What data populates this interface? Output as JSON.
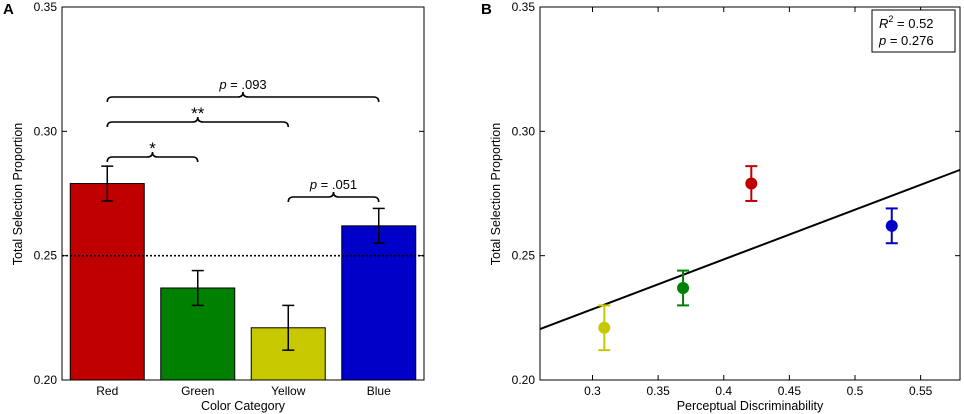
{
  "chart_data": [
    {
      "type": "bar",
      "panel": "A",
      "xlabel": "Color Category",
      "ylabel": "Total Selection Proportion",
      "ylim": [
        0.2,
        0.35
      ],
      "yticks": [
        "0.20",
        "0.25",
        "0.30",
        "0.35"
      ],
      "categories": [
        "Red",
        "Green",
        "Yellow",
        "Blue"
      ],
      "values": [
        0.279,
        0.237,
        0.221,
        0.262
      ],
      "errors": [
        0.007,
        0.007,
        0.009,
        0.007
      ],
      "colors": [
        "#c00000",
        "#008000",
        "#c8c800",
        "#0000c8"
      ],
      "reference_line": {
        "y": 0.25,
        "style": "dotted"
      },
      "annotations": [
        {
          "label": "*",
          "from": "Red",
          "to": "Green"
        },
        {
          "label": "**",
          "from": "Red",
          "to": "Yellow"
        },
        {
          "label": "p = .093",
          "from": "Red",
          "to": "Blue"
        },
        {
          "label": "p = .051",
          "from": "Yellow",
          "to": "Blue"
        }
      ]
    },
    {
      "type": "scatter",
      "panel": "B",
      "xlabel": "Perceptual Discriminability",
      "ylabel": "Total Selection Proportion",
      "xlim": [
        0.26,
        0.58
      ],
      "ylim": [
        0.2,
        0.35
      ],
      "xticks": [
        "0.3",
        "0.35",
        "0.4",
        "0.45",
        "0.5",
        "0.55"
      ],
      "yticks": [
        "0.20",
        "0.25",
        "0.30",
        "0.35"
      ],
      "points": [
        {
          "name": "Yellow",
          "x": 0.309,
          "y": 0.221,
          "err": 0.009,
          "color": "#c8c800"
        },
        {
          "name": "Green",
          "x": 0.369,
          "y": 0.237,
          "err": 0.007,
          "color": "#008000"
        },
        {
          "name": "Red",
          "x": 0.421,
          "y": 0.279,
          "err": 0.007,
          "color": "#c00000"
        },
        {
          "name": "Blue",
          "x": 0.528,
          "y": 0.262,
          "err": 0.007,
          "color": "#0000c8"
        }
      ],
      "fit_line": {
        "x": [
          0.26,
          0.58
        ],
        "y": [
          0.2205,
          0.2845
        ]
      },
      "stats_box": {
        "r2_label": "R",
        "r2_sup": "2",
        "r2_value": " = 0.52",
        "p_label": "p",
        "p_value": " = 0.276"
      }
    }
  ]
}
